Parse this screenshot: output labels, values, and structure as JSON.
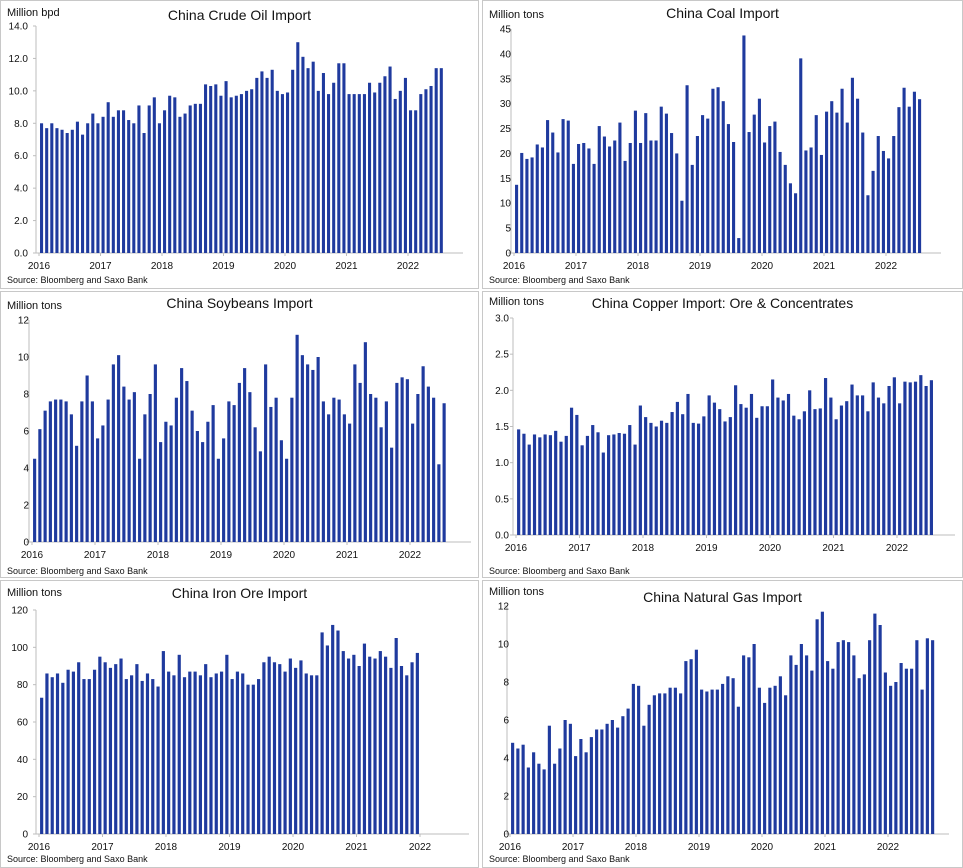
{
  "source_text": "Source: Bloomberg and Saxo Bank",
  "chart_data": [
    {
      "type": "bar",
      "title": "China Crude Oil Import",
      "ylabel": "Million bpd",
      "ylim": [
        0,
        14
      ],
      "yticks": [
        "0.0",
        "2.0",
        "4.0",
        "6.0",
        "8.0",
        "10.0",
        "12.0",
        "14.0"
      ],
      "x_start": "2016-01",
      "xtick_labels": [
        "2016",
        "2017",
        "2018",
        "2019",
        "2020",
        "2021",
        "2022"
      ],
      "color": "#1f3a9e",
      "values": [
        8.0,
        7.7,
        8.0,
        7.7,
        7.6,
        7.4,
        7.6,
        8.1,
        7.3,
        8.0,
        8.6,
        8.0,
        8.4,
        9.3,
        8.4,
        8.8,
        8.8,
        8.2,
        8.0,
        9.1,
        7.4,
        9.1,
        9.6,
        8.0,
        8.8,
        9.7,
        9.6,
        8.4,
        8.6,
        9.1,
        9.2,
        9.2,
        10.4,
        10.3,
        10.4,
        9.7,
        10.6,
        9.6,
        9.7,
        9.8,
        10.0,
        10.1,
        10.8,
        11.2,
        10.8,
        11.3,
        10.0,
        9.8,
        9.9,
        11.3,
        13.0,
        12.1,
        11.4,
        11.8,
        10.0,
        11.1,
        9.8,
        10.5,
        11.7,
        11.7,
        9.8,
        9.8,
        9.8,
        9.8,
        10.5,
        9.9,
        10.5,
        10.9,
        11.5,
        9.5,
        10.0,
        10.8,
        8.8,
        8.8,
        9.8,
        10.1,
        10.3,
        11.4,
        11.4
      ]
    },
    {
      "type": "bar",
      "title": "China Coal Import",
      "ylabel": "Million tons",
      "ylim": [
        0,
        45
      ],
      "yticks": [
        "0",
        "5",
        "10",
        "15",
        "20",
        "25",
        "30",
        "35",
        "40",
        "45"
      ],
      "x_start": "2016-01",
      "xtick_labels": [
        "2016",
        "2017",
        "2018",
        "2019",
        "2020",
        "2021",
        "2022"
      ],
      "color": "#1f3a9e",
      "values": [
        13.7,
        20.1,
        18.9,
        19.2,
        21.8,
        21.2,
        26.7,
        24.2,
        20.2,
        26.9,
        26.6,
        17.9,
        21.9,
        22.1,
        21.0,
        17.9,
        25.5,
        23.4,
        21.4,
        22.6,
        26.2,
        18.5,
        22.1,
        28.6,
        22.1,
        28.1,
        22.6,
        22.6,
        29.4,
        28.0,
        24.1,
        20.0,
        10.5,
        33.7,
        17.7,
        23.5,
        27.7,
        27.0,
        33.0,
        33.3,
        30.5,
        25.9,
        22.3,
        3.0,
        43.7,
        24.3,
        27.8,
        31.0,
        22.2,
        25.5,
        26.4,
        20.3,
        17.7,
        14.0,
        12.0,
        39.1,
        20.6,
        21.2,
        27.7,
        19.7,
        28.4,
        30.5,
        28.2,
        33.0,
        26.2,
        35.2,
        31.0,
        24.2,
        11.6,
        16.5,
        23.5,
        20.5,
        19.0,
        23.5,
        29.3,
        33.2,
        29.4,
        32.4,
        30.9
      ]
    },
    {
      "type": "bar",
      "title": "China Soybeans Import",
      "ylabel": "Million tons",
      "ylim": [
        0,
        12
      ],
      "yticks": [
        "0",
        "2",
        "4",
        "6",
        "8",
        "10",
        "12"
      ],
      "x_start": "2016-01",
      "xtick_labels": [
        "2016",
        "2017",
        "2018",
        "2019",
        "2020",
        "2021",
        "2022"
      ],
      "color": "#1f3a9e",
      "values": [
        4.5,
        6.1,
        7.1,
        7.6,
        7.7,
        7.7,
        7.6,
        6.9,
        5.2,
        7.6,
        9.0,
        7.6,
        5.6,
        6.3,
        7.7,
        9.6,
        10.1,
        8.4,
        7.7,
        8.1,
        4.5,
        6.9,
        8.0,
        9.6,
        5.4,
        6.5,
        6.3,
        7.8,
        9.4,
        8.7,
        7.1,
        6.0,
        5.4,
        6.5,
        7.4,
        4.5,
        5.6,
        7.6,
        7.4,
        8.6,
        9.4,
        8.1,
        6.2,
        4.9,
        9.6,
        7.3,
        7.8,
        5.5,
        4.5,
        7.8,
        11.2,
        10.1,
        9.6,
        9.3,
        10.0,
        7.6,
        6.9,
        7.8,
        7.7,
        6.9,
        6.4,
        9.6,
        8.6,
        10.8,
        8.0,
        7.8,
        6.2,
        7.6,
        5.1,
        8.6,
        8.9,
        8.8,
        6.4,
        8.0,
        9.5,
        8.4,
        7.8,
        4.2,
        7.5
      ]
    },
    {
      "type": "bar",
      "title": "China Copper Import: Ore & Concentrates",
      "ylabel": "Million tons",
      "ylim": [
        0,
        3
      ],
      "yticks": [
        "0.0",
        "0.5",
        "1.0",
        "1.5",
        "2.0",
        "2.5",
        "3.0"
      ],
      "x_start": "2016-01",
      "xtick_labels": [
        "2016",
        "2017",
        "2018",
        "2019",
        "2020",
        "2021",
        "2022"
      ],
      "color": "#1f3a9e",
      "values": [
        1.46,
        1.4,
        1.25,
        1.39,
        1.35,
        1.39,
        1.38,
        1.44,
        1.29,
        1.37,
        1.76,
        1.66,
        1.24,
        1.37,
        1.52,
        1.42,
        1.14,
        1.38,
        1.39,
        1.41,
        1.4,
        1.52,
        1.25,
        1.79,
        1.63,
        1.55,
        1.5,
        1.58,
        1.55,
        1.7,
        1.84,
        1.67,
        1.95,
        1.55,
        1.54,
        1.64,
        1.93,
        1.83,
        1.74,
        1.57,
        1.63,
        2.07,
        1.81,
        1.76,
        1.95,
        1.62,
        1.78,
        1.78,
        2.15,
        1.9,
        1.86,
        1.95,
        1.65,
        1.6,
        1.71,
        2.0,
        1.74,
        1.75,
        2.17,
        1.9,
        1.6,
        1.79,
        1.85,
        2.08,
        1.93,
        1.93,
        1.71,
        2.11,
        1.9,
        1.82,
        2.06,
        2.18,
        1.82,
        2.12,
        2.11,
        2.12,
        2.21,
        2.06,
        2.14
      ]
    },
    {
      "type": "bar",
      "title": "China Iron Ore Import",
      "ylabel": "Million tons",
      "ylim": [
        0,
        120
      ],
      "yticks": [
        "0",
        "20",
        "40",
        "60",
        "80",
        "100",
        "120"
      ],
      "x_start": "2016-01",
      "xtick_labels": [
        "2016",
        "2017",
        "2018",
        "2019",
        "2020",
        "2021",
        "2022"
      ],
      "color": "#1f3a9e",
      "values": [
        73,
        86,
        84,
        86,
        81,
        88,
        87,
        92,
        83,
        83,
        88,
        95,
        92,
        89,
        91,
        94,
        83,
        85,
        91,
        82,
        86,
        83,
        79,
        98,
        87,
        85,
        96,
        84,
        87,
        87,
        85,
        91,
        84,
        86,
        87,
        96,
        83,
        87,
        86,
        80,
        80,
        83,
        92,
        95,
        92,
        91,
        87,
        94,
        89,
        93,
        86,
        85,
        85,
        108,
        101,
        112,
        109,
        98,
        94,
        96,
        90,
        102,
        95,
        94,
        98,
        95,
        89,
        105,
        90,
        85,
        92,
        97
      ]
    },
    {
      "type": "bar",
      "title": "China Natural Gas Import",
      "ylabel": "Million tons",
      "ylim": [
        0,
        12
      ],
      "yticks": [
        "0",
        "2",
        "4",
        "6",
        "8",
        "10",
        "12"
      ],
      "x_start": "2016-01",
      "xtick_labels": [
        "2016",
        "2017",
        "2018",
        "2019",
        "2020",
        "2021",
        "2022"
      ],
      "color": "#1f3a9e",
      "values": [
        4.8,
        4.5,
        4.7,
        3.5,
        4.3,
        3.7,
        3.4,
        5.7,
        3.7,
        4.5,
        6.0,
        5.8,
        4.1,
        5.0,
        4.3,
        5.1,
        5.5,
        5.5,
        5.8,
        6.0,
        5.6,
        6.2,
        6.6,
        7.9,
        7.8,
        5.7,
        6.8,
        7.3,
        7.4,
        7.4,
        7.7,
        7.7,
        7.4,
        9.1,
        9.2,
        9.7,
        7.6,
        7.5,
        7.6,
        7.6,
        7.9,
        8.3,
        8.2,
        6.7,
        9.4,
        9.3,
        10.0,
        7.7,
        6.9,
        7.7,
        7.8,
        8.3,
        7.3,
        9.4,
        8.9,
        10.0,
        9.4,
        8.6,
        11.3,
        11.7,
        9.1,
        8.7,
        10.1,
        10.2,
        10.1,
        9.4,
        8.2,
        8.4,
        10.2,
        11.6,
        11.0,
        8.5,
        7.8,
        8.0,
        9.0,
        8.7,
        8.7,
        10.2,
        7.6,
        10.3,
        10.2
      ]
    }
  ]
}
